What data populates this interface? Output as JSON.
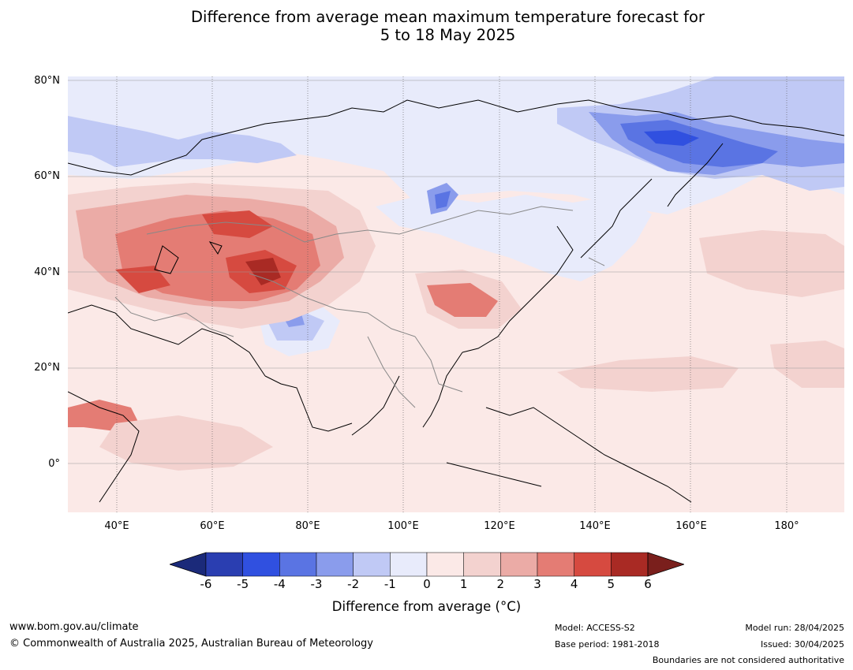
{
  "title": {
    "line1": "Difference from average mean maximum temperature forecast for",
    "line2": "5 to 18 May 2025"
  },
  "map": {
    "lat_labels": [
      "80°N",
      "60°N",
      "40°N",
      "20°N",
      "0°"
    ],
    "lon_labels": [
      "40°E",
      "60°E",
      "80°E",
      "100°E",
      "120°E",
      "140°E",
      "160°E",
      "180°"
    ]
  },
  "legend": {
    "ticks": [
      "-6",
      "-5",
      "-4",
      "-3",
      "-2",
      "-1",
      "0",
      "1",
      "2",
      "3",
      "4",
      "5",
      "6"
    ],
    "colors": [
      "#1b2a7a",
      "#2a3eb1",
      "#3050e0",
      "#5a74e3",
      "#8a9cec",
      "#c0c9f5",
      "#e8ebfb",
      "#fbe9e7",
      "#f3d2cf",
      "#ebaba6",
      "#e47c74",
      "#d64a40",
      "#a92a24",
      "#7a1f1c"
    ],
    "label": "Difference from average (°C)"
  },
  "footer": {
    "url": "www.bom.gov.au/climate",
    "copyright": "© Commonwealth of Australia 2025, Australian Bureau of Meteorology",
    "model": "Model: ACCESS-S2",
    "base_period": "Base period: 1981-2018",
    "model_run": "Model run: 28/04/2025",
    "issued": "Issued: 30/04/2025",
    "boundaries": "Boundaries are not considered authoritative"
  }
}
